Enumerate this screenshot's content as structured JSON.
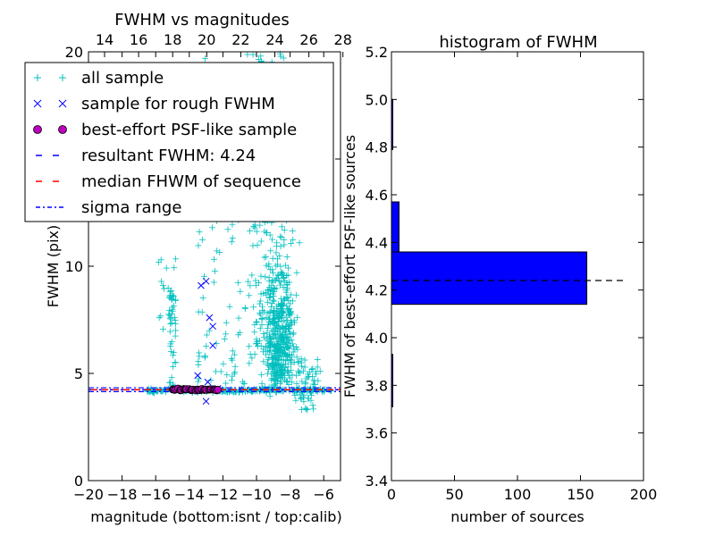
{
  "chart_data": [
    {
      "type": "scatter",
      "title": "FWHM vs magnitudes",
      "xlabel": "magnitude (bottom:isnt / top:calib)",
      "ylabel": "FWHM (pix)",
      "xlim": [
        -20,
        -5
      ],
      "ylim": [
        0,
        20
      ],
      "x_ticks": [
        "−20",
        "−18",
        "−16",
        "−14",
        "−12",
        "−10",
        "−8",
        "−6"
      ],
      "x_top_ticks": [
        "14",
        "16",
        "18",
        "20",
        "22",
        "24",
        "26",
        "28"
      ],
      "y_ticks": [
        "0",
        "5",
        "10",
        "15",
        "20"
      ],
      "grid": false,
      "legend": {
        "placement": "upper-left",
        "entries": [
          {
            "label": "all sample",
            "marker": "plus",
            "color": "#00BFBF"
          },
          {
            "label": "sample for rough FWHM",
            "marker": "x",
            "color": "#0000FF"
          },
          {
            "label": "best-effort PSF-like sample",
            "marker": "circle",
            "color": "#BF00BF"
          },
          {
            "label": "resultant FWHM: 4.24",
            "marker": "dashed-line",
            "color": "#0000FF"
          },
          {
            "label": "median FHWM of sequence",
            "marker": "dashed-line",
            "color": "#FF0000"
          },
          {
            "label": "sigma range",
            "marker": "dashdot-line",
            "color": "#0000FF"
          }
        ]
      },
      "series": [
        {
          "name": "sample for rough FWHM",
          "points": [
            [
              -13.3,
              9.1
            ],
            [
              -13.0,
              9.3
            ],
            [
              -12.8,
              7.6
            ],
            [
              -12.6,
              7.2
            ],
            [
              -12.6,
              6.3
            ],
            [
              -13.5,
              4.9
            ],
            [
              -12.9,
              4.6
            ],
            [
              -13.0,
              3.7
            ],
            [
              -14.5,
              4.3
            ],
            [
              -13.8,
              4.2
            ],
            [
              -12.3,
              4.3
            ]
          ]
        },
        {
          "name": "best-effort PSF-like sample",
          "x_range": [
            -15.0,
            -12.3
          ],
          "y_value": 4.25
        }
      ],
      "lines": [
        {
          "name": "resultant FWHM: 4.24",
          "y": 4.24
        },
        {
          "name": "median FHWM of sequence",
          "y": 4.24
        },
        {
          "name": "sigma range",
          "y": [
            4.15,
            4.33
          ]
        }
      ]
    },
    {
      "type": "bar",
      "orientation": "horizontal",
      "title": "histogram of FWHM",
      "xlabel": "number of sources",
      "ylabel": "FWHM of best-effort PSF-like sources",
      "xlim": [
        0,
        200
      ],
      "ylim": [
        3.4,
        5.2
      ],
      "x_ticks": [
        "0",
        "50",
        "100",
        "150",
        "200"
      ],
      "y_ticks": [
        "3.4",
        "3.6",
        "3.8",
        "4.0",
        "4.2",
        "4.4",
        "4.6",
        "4.8",
        "5.0",
        "5.2"
      ],
      "bins": [
        {
          "low": 3.71,
          "high": 3.93,
          "count": 1
        },
        {
          "low": 4.14,
          "high": 4.36,
          "count": 155
        },
        {
          "low": 4.36,
          "high": 4.57,
          "count": 6
        },
        {
          "low": 4.79,
          "high": 5.0,
          "count": 1
        }
      ],
      "reference_line": {
        "y": 4.24,
        "style": "dashed",
        "color": "#000000"
      },
      "bar_color": "#0000FF",
      "grid": false
    }
  ]
}
